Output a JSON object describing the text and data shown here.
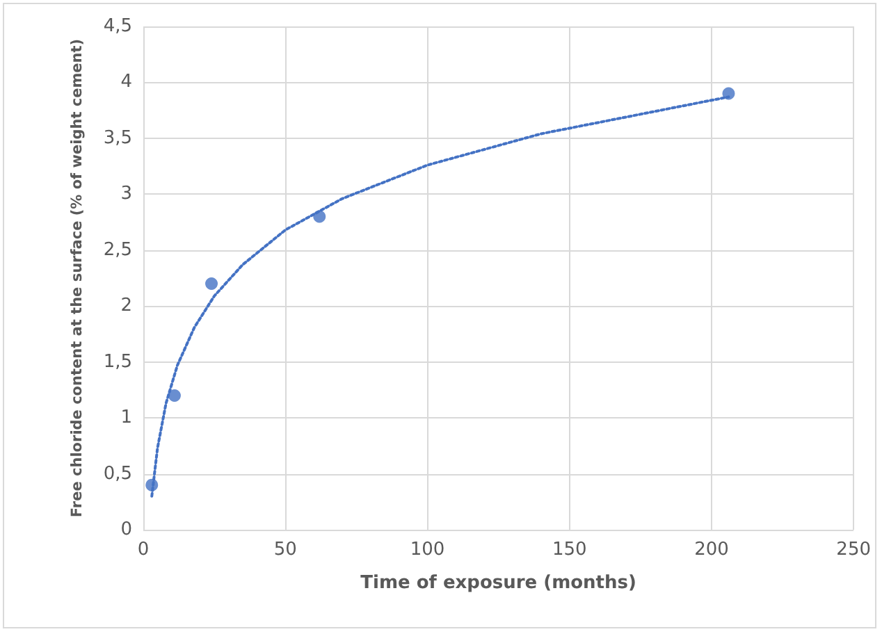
{
  "chart_data": {
    "type": "scatter",
    "xlabel": "Time of exposure (months)",
    "ylabel": "Free chloride content at the surface (% of weight cement)",
    "xlim": [
      0,
      250
    ],
    "xticks": [
      0,
      50,
      100,
      150,
      200,
      250
    ],
    "ylim": [
      0,
      4.5
    ],
    "yticks": [
      0,
      {
        "value": 0.5,
        "label": "0,5"
      },
      1,
      {
        "value": 1.5,
        "label": "1,5"
      },
      2,
      {
        "value": 2.5,
        "label": "2,5"
      },
      3,
      {
        "value": 3.5,
        "label": "3,5"
      },
      4,
      {
        "value": 4.5,
        "label": "4,5"
      }
    ],
    "grid": true,
    "series": [
      {
        "marker": "circle",
        "color": "#4472c4",
        "x": [
          3,
          11,
          24,
          62,
          206
        ],
        "values": [
          0.4,
          1.2,
          2.2,
          2.8,
          3.9
        ]
      },
      {
        "type": "line",
        "marker": "none",
        "line_style": "dotted",
        "color": "#4472c4",
        "x": [
          3,
          5,
          8,
          12,
          18,
          25,
          35,
          50,
          70,
          100,
          140,
          206
        ],
        "values": [
          0.3,
          0.73,
          1.13,
          1.47,
          1.81,
          2.09,
          2.37,
          2.68,
          2.96,
          3.26,
          3.54,
          3.87
        ]
      }
    ]
  }
}
